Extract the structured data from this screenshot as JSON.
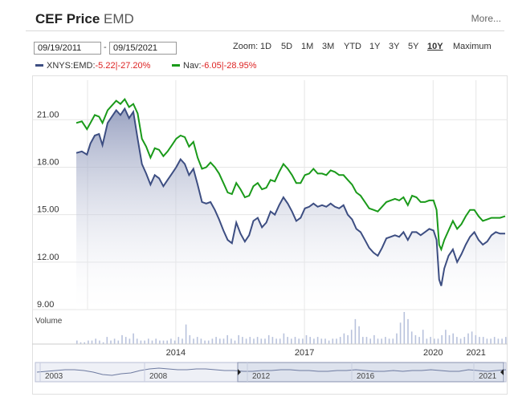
{
  "header": {
    "title": "CEF Price",
    "ticker": "EMD",
    "more_label": "More..."
  },
  "range": {
    "start": "09/19/2011",
    "dash": "-",
    "end": "09/15/2021"
  },
  "zoom": {
    "label": "Zoom:",
    "options": [
      "1D",
      "5D",
      "1M",
      "3M",
      "YTD",
      "1Y",
      "3Y",
      "5Y",
      "10Y",
      "Maximum"
    ],
    "active": "10Y"
  },
  "legend": [
    {
      "name": "XNYS:EMD:",
      "change": "-5.22",
      "sep": "|",
      "pct": "-27.20%",
      "color": "#3d4e82"
    },
    {
      "name": "Nav:",
      "change": "-6.05",
      "sep": "|",
      "pct": "-28.95%",
      "color": "#1a9a1a"
    }
  ],
  "colors": {
    "price": "#3d4e82",
    "nav": "#1a9a1a",
    "grid": "#e6e6e6",
    "volume": "#b8c2dc"
  },
  "chart_data": {
    "type": "line",
    "y_ticks": [
      "21.00",
      "18.00",
      "15.00",
      "12.00",
      "9.00"
    ],
    "ylim": [
      9,
      23.5
    ],
    "xlim": [
      2011.72,
      2021.72
    ],
    "x_ticks": [
      "2014",
      "2017",
      "2020",
      "2021"
    ],
    "volume_label": "Volume",
    "navigator_ticks": [
      "2003",
      "2008",
      "2012",
      "2016",
      "2021"
    ],
    "series": [
      {
        "name": "XNYS:EMD",
        "points": [
          [
            2011.72,
            18.9
          ],
          [
            2011.85,
            19.0
          ],
          [
            2011.97,
            18.8
          ],
          [
            2012.05,
            19.5
          ],
          [
            2012.15,
            20.0
          ],
          [
            2012.25,
            20.1
          ],
          [
            2012.33,
            19.4
          ],
          [
            2012.45,
            20.8
          ],
          [
            2012.55,
            21.2
          ],
          [
            2012.65,
            21.6
          ],
          [
            2012.75,
            21.3
          ],
          [
            2012.85,
            21.7
          ],
          [
            2012.95,
            21.1
          ],
          [
            2013.05,
            21.5
          ],
          [
            2013.15,
            19.8
          ],
          [
            2013.25,
            18.2
          ],
          [
            2013.35,
            17.6
          ],
          [
            2013.45,
            16.9
          ],
          [
            2013.55,
            17.5
          ],
          [
            2013.65,
            17.3
          ],
          [
            2013.75,
            16.8
          ],
          [
            2013.85,
            17.2
          ],
          [
            2013.95,
            17.6
          ],
          [
            2014.05,
            18.0
          ],
          [
            2014.15,
            18.5
          ],
          [
            2014.25,
            18.2
          ],
          [
            2014.35,
            17.5
          ],
          [
            2014.45,
            17.9
          ],
          [
            2014.55,
            16.9
          ],
          [
            2014.65,
            15.8
          ],
          [
            2014.75,
            15.7
          ],
          [
            2014.85,
            15.8
          ],
          [
            2014.95,
            15.3
          ],
          [
            2015.05,
            14.7
          ],
          [
            2015.15,
            14.0
          ],
          [
            2015.25,
            13.4
          ],
          [
            2015.35,
            13.2
          ],
          [
            2015.45,
            14.5
          ],
          [
            2015.55,
            13.8
          ],
          [
            2015.65,
            13.3
          ],
          [
            2015.75,
            13.7
          ],
          [
            2015.85,
            14.6
          ],
          [
            2015.95,
            14.8
          ],
          [
            2016.05,
            14.2
          ],
          [
            2016.15,
            14.5
          ],
          [
            2016.25,
            15.2
          ],
          [
            2016.35,
            15.0
          ],
          [
            2016.45,
            15.6
          ],
          [
            2016.55,
            16.1
          ],
          [
            2016.65,
            15.7
          ],
          [
            2016.75,
            15.2
          ],
          [
            2016.85,
            14.6
          ],
          [
            2016.95,
            14.8
          ],
          [
            2017.05,
            15.4
          ],
          [
            2017.15,
            15.5
          ],
          [
            2017.25,
            15.7
          ],
          [
            2017.35,
            15.5
          ],
          [
            2017.45,
            15.6
          ],
          [
            2017.55,
            15.5
          ],
          [
            2017.65,
            15.7
          ],
          [
            2017.75,
            15.5
          ],
          [
            2017.85,
            15.4
          ],
          [
            2017.95,
            15.6
          ],
          [
            2018.05,
            15.0
          ],
          [
            2018.15,
            14.7
          ],
          [
            2018.25,
            14.1
          ],
          [
            2018.35,
            13.9
          ],
          [
            2018.45,
            13.4
          ],
          [
            2018.55,
            12.9
          ],
          [
            2018.65,
            12.6
          ],
          [
            2018.75,
            12.4
          ],
          [
            2018.85,
            12.9
          ],
          [
            2018.95,
            13.5
          ],
          [
            2019.05,
            13.6
          ],
          [
            2019.15,
            13.7
          ],
          [
            2019.25,
            13.6
          ],
          [
            2019.35,
            13.9
          ],
          [
            2019.45,
            13.4
          ],
          [
            2019.55,
            13.9
          ],
          [
            2019.65,
            13.9
          ],
          [
            2019.75,
            13.7
          ],
          [
            2019.85,
            13.9
          ],
          [
            2019.95,
            14.1
          ],
          [
            2020.05,
            14.0
          ],
          [
            2020.12,
            13.4
          ],
          [
            2020.18,
            10.9
          ],
          [
            2020.23,
            10.5
          ],
          [
            2020.3,
            11.6
          ],
          [
            2020.4,
            12.4
          ],
          [
            2020.5,
            12.8
          ],
          [
            2020.6,
            12.0
          ],
          [
            2020.7,
            12.5
          ],
          [
            2020.8,
            13.1
          ],
          [
            2020.9,
            13.6
          ],
          [
            2021.0,
            13.9
          ],
          [
            2021.1,
            13.4
          ],
          [
            2021.2,
            13.1
          ],
          [
            2021.3,
            13.3
          ],
          [
            2021.4,
            13.7
          ],
          [
            2021.5,
            13.9
          ],
          [
            2021.6,
            13.8
          ],
          [
            2021.72,
            13.8
          ]
        ]
      },
      {
        "name": "Nav",
        "points": [
          [
            2011.72,
            20.8
          ],
          [
            2011.85,
            20.9
          ],
          [
            2011.97,
            20.4
          ],
          [
            2012.05,
            20.8
          ],
          [
            2012.15,
            21.3
          ],
          [
            2012.25,
            21.2
          ],
          [
            2012.33,
            20.8
          ],
          [
            2012.45,
            21.6
          ],
          [
            2012.55,
            21.9
          ],
          [
            2012.65,
            22.2
          ],
          [
            2012.75,
            22.0
          ],
          [
            2012.85,
            22.3
          ],
          [
            2012.95,
            21.8
          ],
          [
            2013.05,
            22.0
          ],
          [
            2013.15,
            21.4
          ],
          [
            2013.25,
            19.8
          ],
          [
            2013.35,
            19.3
          ],
          [
            2013.45,
            18.6
          ],
          [
            2013.55,
            19.2
          ],
          [
            2013.65,
            19.1
          ],
          [
            2013.75,
            18.7
          ],
          [
            2013.85,
            19.0
          ],
          [
            2013.95,
            19.4
          ],
          [
            2014.05,
            19.8
          ],
          [
            2014.15,
            20.0
          ],
          [
            2014.25,
            19.9
          ],
          [
            2014.35,
            19.3
          ],
          [
            2014.45,
            19.6
          ],
          [
            2014.55,
            18.6
          ],
          [
            2014.65,
            17.9
          ],
          [
            2014.75,
            18.0
          ],
          [
            2014.85,
            18.3
          ],
          [
            2014.95,
            18.0
          ],
          [
            2015.05,
            17.6
          ],
          [
            2015.15,
            17.0
          ],
          [
            2015.25,
            16.4
          ],
          [
            2015.35,
            16.3
          ],
          [
            2015.45,
            17.0
          ],
          [
            2015.55,
            16.6
          ],
          [
            2015.65,
            16.1
          ],
          [
            2015.75,
            16.2
          ],
          [
            2015.85,
            16.8
          ],
          [
            2015.95,
            17.0
          ],
          [
            2016.05,
            16.6
          ],
          [
            2016.15,
            16.7
          ],
          [
            2016.25,
            17.2
          ],
          [
            2016.35,
            17.1
          ],
          [
            2016.45,
            17.7
          ],
          [
            2016.55,
            18.2
          ],
          [
            2016.65,
            17.9
          ],
          [
            2016.75,
            17.5
          ],
          [
            2016.85,
            17.0
          ],
          [
            2016.95,
            17.0
          ],
          [
            2017.05,
            17.5
          ],
          [
            2017.15,
            17.6
          ],
          [
            2017.25,
            17.9
          ],
          [
            2017.35,
            17.6
          ],
          [
            2017.45,
            17.6
          ],
          [
            2017.55,
            17.5
          ],
          [
            2017.65,
            17.8
          ],
          [
            2017.75,
            17.7
          ],
          [
            2017.85,
            17.5
          ],
          [
            2017.95,
            17.5
          ],
          [
            2018.05,
            17.2
          ],
          [
            2018.15,
            16.9
          ],
          [
            2018.25,
            16.4
          ],
          [
            2018.35,
            16.2
          ],
          [
            2018.45,
            15.8
          ],
          [
            2018.55,
            15.4
          ],
          [
            2018.65,
            15.3
          ],
          [
            2018.75,
            15.2
          ],
          [
            2018.85,
            15.5
          ],
          [
            2018.95,
            15.8
          ],
          [
            2019.05,
            15.9
          ],
          [
            2019.15,
            16.0
          ],
          [
            2019.25,
            15.9
          ],
          [
            2019.35,
            16.1
          ],
          [
            2019.45,
            15.6
          ],
          [
            2019.55,
            16.2
          ],
          [
            2019.65,
            16.1
          ],
          [
            2019.75,
            15.8
          ],
          [
            2019.85,
            15.8
          ],
          [
            2019.95,
            15.9
          ],
          [
            2020.05,
            15.9
          ],
          [
            2020.12,
            15.3
          ],
          [
            2020.18,
            13.1
          ],
          [
            2020.23,
            12.8
          ],
          [
            2020.3,
            13.4
          ],
          [
            2020.4,
            14.0
          ],
          [
            2020.5,
            14.6
          ],
          [
            2020.6,
            14.1
          ],
          [
            2020.7,
            14.4
          ],
          [
            2020.8,
            14.9
          ],
          [
            2020.9,
            15.3
          ],
          [
            2021.0,
            15.3
          ],
          [
            2021.1,
            14.9
          ],
          [
            2021.2,
            14.6
          ],
          [
            2021.3,
            14.7
          ],
          [
            2021.4,
            14.8
          ],
          [
            2021.5,
            14.8
          ],
          [
            2021.6,
            14.8
          ],
          [
            2021.72,
            14.9
          ]
        ]
      }
    ],
    "volume": [
      2,
      1,
      1,
      2,
      2,
      3,
      2,
      1,
      4,
      2,
      3,
      2,
      5,
      4,
      3,
      6,
      3,
      2,
      2,
      3,
      2,
      3,
      2,
      2,
      2,
      3,
      2,
      4,
      3,
      11,
      5,
      3,
      4,
      3,
      2,
      2,
      3,
      4,
      3,
      3,
      5,
      3,
      2,
      5,
      4,
      3,
      4,
      3,
      4,
      3,
      3,
      5,
      4,
      3,
      3,
      6,
      4,
      3,
      4,
      3,
      3,
      5,
      4,
      3,
      4,
      3,
      3,
      2,
      3,
      3,
      4,
      6,
      5,
      8,
      14,
      10,
      4,
      4,
      3,
      5,
      3,
      3,
      4,
      3,
      3,
      6,
      12,
      18,
      14,
      7,
      5,
      4,
      8,
      3,
      4,
      3,
      3,
      5,
      8,
      5,
      6,
      4,
      3,
      4,
      6,
      7,
      5,
      4,
      4,
      3,
      3,
      4,
      3,
      3,
      4
    ]
  }
}
